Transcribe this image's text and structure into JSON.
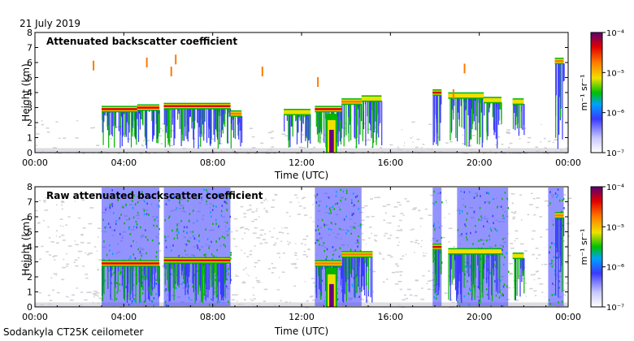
{
  "figure": {
    "date_label": "21 July 2019",
    "footer_label": "Sodankyla CT25K ceilometer",
    "x_axis_label": "Time (UTC)",
    "y_axis_label": "Height (km)",
    "x_tick_labels": [
      "00:00",
      "04:00",
      "08:00",
      "12:00",
      "16:00",
      "20:00",
      "00:00"
    ],
    "y_tick_labels": [
      "0",
      "1",
      "2",
      "3",
      "4",
      "5",
      "6",
      "7",
      "8"
    ],
    "colorbar_unit": "m⁻¹ sr⁻¹",
    "colorbar_tick_labels": [
      "10⁻⁴",
      "10⁻⁵",
      "10⁻⁶",
      "10⁻⁷"
    ],
    "colors": {
      "noise": "#cfcfd6",
      "low": "#3a3aff",
      "mid": "#00b400",
      "high_mid": "#f0e000",
      "high": "#ff7a00",
      "peak": "#e00000",
      "max": "#6a0080"
    }
  },
  "chart_data": [
    {
      "type": "heatmap",
      "title": "Attenuated backscatter coefficient",
      "xlabel": "Time (UTC)",
      "ylabel": "Height (km)",
      "xlim": [
        0,
        24
      ],
      "ylim": [
        0,
        8
      ],
      "color_scale": "log",
      "color_range": [
        1e-07,
        0.0001
      ],
      "color_unit": "m-1 sr-1",
      "cloud_layers": [
        {
          "start_h": 3.0,
          "end_h": 4.6,
          "height_km": 2.9,
          "value": 4e-05
        },
        {
          "start_h": 4.6,
          "end_h": 5.6,
          "height_km": 3.0,
          "value": 3e-05
        },
        {
          "start_h": 5.8,
          "end_h": 8.8,
          "height_km": 3.1,
          "value": 4e-05
        },
        {
          "start_h": 8.8,
          "end_h": 9.3,
          "height_km": 2.6,
          "value": 2e-05
        },
        {
          "start_h": 11.2,
          "end_h": 12.4,
          "height_km": 2.7,
          "value": 1e-05
        },
        {
          "start_h": 12.6,
          "end_h": 13.8,
          "height_km": 2.9,
          "value": 3e-05
        },
        {
          "start_h": 13.8,
          "end_h": 14.7,
          "height_km": 3.4,
          "value": 2e-05
        },
        {
          "start_h": 14.7,
          "end_h": 15.6,
          "height_km": 3.6,
          "value": 1e-05
        },
        {
          "start_h": 17.9,
          "end_h": 18.3,
          "height_km": 4.0,
          "value": 3e-05
        },
        {
          "start_h": 18.6,
          "end_h": 20.2,
          "height_km": 3.8,
          "value": 1e-05
        },
        {
          "start_h": 20.2,
          "end_h": 21.0,
          "height_km": 3.5,
          "value": 1e-05
        },
        {
          "start_h": 21.5,
          "end_h": 22.0,
          "height_km": 3.4,
          "value": 5e-06
        },
        {
          "start_h": 23.4,
          "end_h": 23.8,
          "height_km": 6.1,
          "value": 2e-05
        }
      ],
      "precipitation_shafts": [
        {
          "start_h": 13.1,
          "end_h": 13.6,
          "top_km": 2.6,
          "value": 0.0001
        }
      ],
      "scattered_echoes": [
        {
          "time_h": 2.6,
          "height_km": 5.8
        },
        {
          "time_h": 5.0,
          "height_km": 6.0
        },
        {
          "time_h": 6.3,
          "height_km": 6.2
        },
        {
          "time_h": 6.1,
          "height_km": 5.4
        },
        {
          "time_h": 10.2,
          "height_km": 5.4
        },
        {
          "time_h": 12.7,
          "height_km": 4.7
        },
        {
          "time_h": 19.3,
          "height_km": 5.6
        },
        {
          "time_h": 18.8,
          "height_km": 3.9
        }
      ]
    },
    {
      "type": "heatmap",
      "title": "Raw attenuated backscatter coefficient",
      "xlabel": "Time (UTC)",
      "ylabel": "Height (km)",
      "xlim": [
        0,
        24
      ],
      "ylim": [
        0,
        8
      ],
      "color_scale": "log",
      "color_range": [
        1e-07,
        0.0001
      ],
      "color_unit": "m-1 sr-1",
      "noisy_periods": [
        {
          "start_h": 3.0,
          "end_h": 5.6,
          "value": 2e-06
        },
        {
          "start_h": 5.8,
          "end_h": 8.8,
          "value": 3e-06
        },
        {
          "start_h": 12.6,
          "end_h": 14.7,
          "value": 2e-06
        },
        {
          "start_h": 17.9,
          "end_h": 18.3,
          "value": 8e-07
        },
        {
          "start_h": 19.0,
          "end_h": 21.3,
          "value": 6e-07
        },
        {
          "start_h": 23.1,
          "end_h": 23.8,
          "value": 6e-07
        }
      ],
      "cloud_layers": [
        {
          "start_h": 3.0,
          "end_h": 5.6,
          "height_km": 2.9,
          "value": 4e-05
        },
        {
          "start_h": 5.8,
          "end_h": 8.8,
          "height_km": 3.1,
          "value": 4e-05
        },
        {
          "start_h": 12.6,
          "end_h": 13.8,
          "height_km": 2.9,
          "value": 2e-05
        },
        {
          "start_h": 13.8,
          "end_h": 15.2,
          "height_km": 3.5,
          "value": 2e-05
        },
        {
          "start_h": 17.9,
          "end_h": 18.3,
          "height_km": 4.0,
          "value": 3e-05
        },
        {
          "start_h": 18.6,
          "end_h": 21.0,
          "height_km": 3.7,
          "value": 1e-05
        },
        {
          "start_h": 21.5,
          "end_h": 22.0,
          "height_km": 3.4,
          "value": 5e-06
        },
        {
          "start_h": 23.4,
          "end_h": 23.8,
          "height_km": 6.1,
          "value": 2e-05
        }
      ],
      "precipitation_shafts": [
        {
          "start_h": 13.1,
          "end_h": 13.6,
          "top_km": 2.6,
          "value": 0.0001
        }
      ]
    }
  ]
}
